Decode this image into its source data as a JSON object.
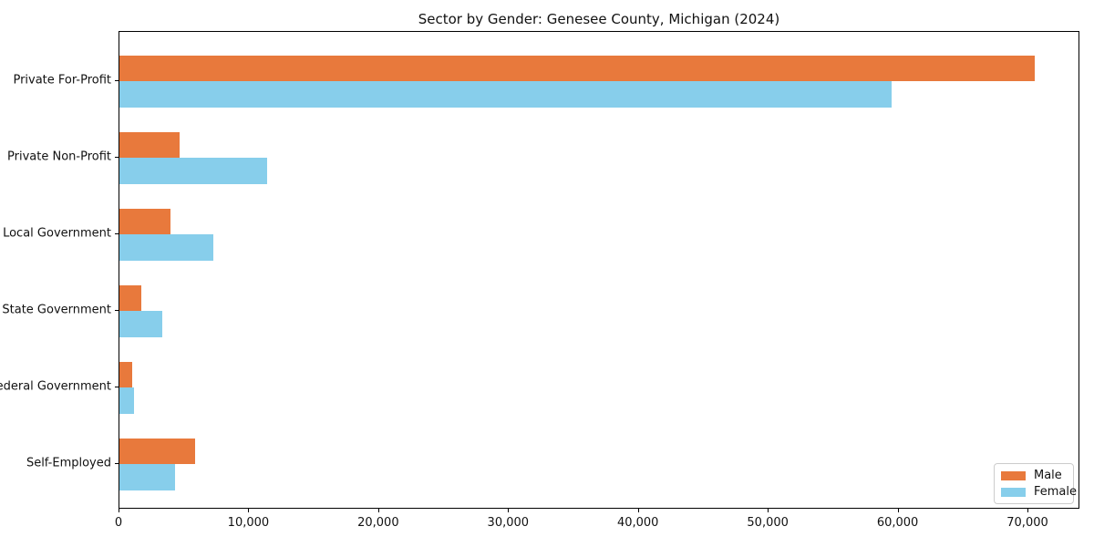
{
  "figure": {
    "background": "#ffffff"
  },
  "chart_data": {
    "type": "bar",
    "orientation": "horizontal",
    "title": "Sector by Gender: Genesee County, Michigan (2024)",
    "categories": [
      "Private For-Profit",
      "Private Non-Profit",
      "Local Government",
      "State Government",
      "Federal Government",
      "Self-Employed"
    ],
    "series": [
      {
        "name": "Male",
        "color": "#E8793C",
        "values": [
          70500,
          4600,
          3900,
          1700,
          1000,
          5800
        ]
      },
      {
        "name": "Female",
        "color": "#87CEEB",
        "values": [
          59500,
          11400,
          7200,
          3300,
          1100,
          4300
        ]
      }
    ],
    "xlabel": "",
    "ylabel": "",
    "xlim": [
      0,
      74000
    ],
    "xticks": {
      "values": [
        0,
        10000,
        20000,
        30000,
        40000,
        50000,
        60000,
        70000
      ],
      "labels": [
        "0",
        "10,000",
        "20,000",
        "30,000",
        "40,000",
        "50,000",
        "60,000",
        "70,000"
      ]
    },
    "grid": false,
    "legend_position": "lower right",
    "axis_color": "#000000"
  }
}
